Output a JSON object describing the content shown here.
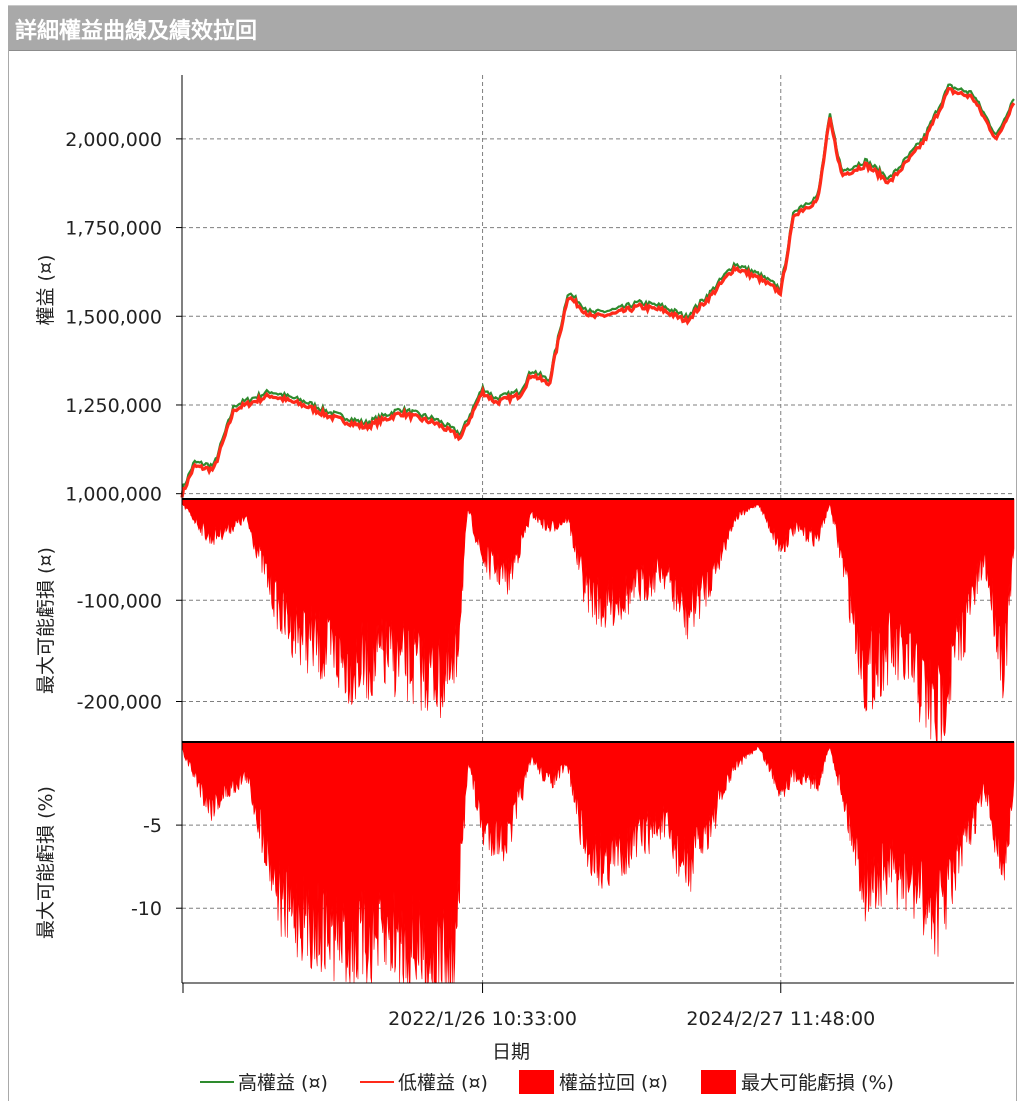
{
  "window": {
    "title": "詳細權益曲線及績效拉回"
  },
  "colors": {
    "high": "#2e8b2e",
    "low": "#ff2a1a",
    "fill": "#ff0000",
    "grid": "#7f7f7f",
    "axis": "#000000"
  },
  "chart_data": [
    {
      "type": "line",
      "ylabel": "權益 (¤)",
      "ylim": [
        985000,
        2180000
      ],
      "yticks": [
        1000000,
        1250000,
        1500000,
        1750000,
        2000000
      ],
      "ytick_labels": [
        "1,000,000",
        "1,250,000",
        "1,500,000",
        "1,750,000",
        "2,000,000"
      ],
      "series": [
        {
          "name": "高權益 (¤)",
          "color": "#2e8b2e"
        },
        {
          "name": "低權益 (¤)",
          "color": "#ff2a1a"
        }
      ],
      "x": [
        "2019-12-20",
        "2020-01-20",
        "2020-03-10",
        "2020-05-01",
        "2020-08-01",
        "2020-11-01",
        "2021-01-01",
        "2021-04-01",
        "2021-07-01",
        "2021-10-01",
        "2021-12-01",
        "2022-01-26",
        "2022-03-01",
        "2022-05-01",
        "2022-06-01",
        "2022-07-15",
        "2022-09-01",
        "2022-11-01",
        "2023-01-01",
        "2023-03-01",
        "2023-05-01",
        "2023-07-01",
        "2023-09-01",
        "2023-11-01",
        "2024-01-01",
        "2024-02-27",
        "2024-04-01",
        "2024-06-01",
        "2024-07-01",
        "2024-08-01",
        "2024-10-01",
        "2024-12-01",
        "2025-02-01",
        "2025-03-01",
        "2025-05-01",
        "2025-07-01",
        "2025-09-01",
        "2025-10-15"
      ],
      "values": [
        1000000,
        1080000,
        1070000,
        1240000,
        1280000,
        1250000,
        1220000,
        1190000,
        1230000,
        1200000,
        1160000,
        1290000,
        1260000,
        1280000,
        1340000,
        1310000,
        1560000,
        1500000,
        1510000,
        1530000,
        1520000,
        1490000,
        1560000,
        1640000,
        1610000,
        1570000,
        1790000,
        1830000,
        2060000,
        1900000,
        1930000,
        1880000,
        1960000,
        2000000,
        2140000,
        2120000,
        2000000,
        2110000
      ]
    },
    {
      "type": "area",
      "ylabel": "最大可能虧損 (¤)",
      "series_name": "權益拉回 (¤)",
      "ylim": [
        -240000,
        0
      ],
      "yticks": [
        -100000,
        -200000
      ],
      "ytick_labels": [
        "-100,000",
        "-200,000"
      ],
      "x": [
        "2019-12-20",
        "2020-03-01",
        "2020-06-01",
        "2020-09-01",
        "2020-12-01",
        "2021-03-01",
        "2021-06-01",
        "2021-09-01",
        "2021-11-15",
        "2021-12-20",
        "2022-01-26",
        "2022-04-01",
        "2022-06-01",
        "2022-07-15",
        "2022-09-01",
        "2022-10-15",
        "2022-12-01",
        "2023-03-01",
        "2023-05-01",
        "2023-07-01",
        "2023-09-01",
        "2023-11-01",
        "2024-01-01",
        "2024-02-27",
        "2024-04-01",
        "2024-06-01",
        "2024-07-01",
        "2024-08-01",
        "2024-10-01",
        "2024-12-01",
        "2025-02-01",
        "2025-04-01",
        "2025-06-01",
        "2025-08-01",
        "2025-09-20",
        "2025-10-15"
      ],
      "values": [
        -5000,
        -40000,
        -20000,
        -120000,
        -150000,
        -170000,
        -160000,
        -175000,
        -185000,
        -10000,
        -60000,
        -80000,
        -15000,
        -30000,
        -20000,
        -90000,
        -110000,
        -90000,
        -70000,
        -120000,
        -80000,
        -20000,
        -5000,
        -50000,
        -30000,
        -40000,
        -5000,
        -60000,
        -180000,
        -150000,
        -175000,
        -220000,
        -140000,
        -60000,
        -170000,
        -50000
      ]
    },
    {
      "type": "area",
      "ylabel": "最大可能虧損 (%)",
      "series_name": "最大可能虧損 (%)",
      "ylim": [
        -14.5,
        0
      ],
      "yticks": [
        -5,
        -10
      ],
      "ytick_labels": [
        "-5",
        "-10"
      ],
      "x": [
        "2019-12-20",
        "2020-03-01",
        "2020-06-01",
        "2020-09-01",
        "2020-12-01",
        "2021-03-01",
        "2021-06-01",
        "2021-09-01",
        "2021-11-15",
        "2021-12-20",
        "2022-01-26",
        "2022-04-01",
        "2022-06-01",
        "2022-07-15",
        "2022-09-01",
        "2022-10-15",
        "2022-12-01",
        "2023-03-01",
        "2023-05-01",
        "2023-07-01",
        "2023-09-01",
        "2023-11-01",
        "2024-01-01",
        "2024-02-27",
        "2024-04-01",
        "2024-06-01",
        "2024-07-01",
        "2024-08-01",
        "2024-10-01",
        "2024-12-01",
        "2025-02-01",
        "2025-04-01",
        "2025-06-01",
        "2025-08-01",
        "2025-09-20",
        "2025-10-15"
      ],
      "values": [
        -0.5,
        -4,
        -2,
        -10,
        -11.5,
        -12.5,
        -12,
        -13,
        -14,
        -1,
        -5.5,
        -6,
        -1,
        -2.5,
        -1.5,
        -6.5,
        -7.5,
        -6,
        -5,
        -8,
        -5,
        -1.5,
        -0.3,
        -3,
        -2,
        -2.5,
        -0.3,
        -3,
        -9,
        -8,
        -9,
        -10.8,
        -7,
        -3,
        -8,
        -3
      ]
    }
  ],
  "xaxis": {
    "label": "日期",
    "ticks": [
      {
        "x": "2022-01-26",
        "label": "2022/1/26 10:33:00"
      },
      {
        "x": "2024-02-27",
        "label": "2024/2/27 11:48:00"
      }
    ],
    "range": [
      "2019-12-20",
      "2025-10-15"
    ]
  },
  "legend": [
    {
      "label": "高權益 (¤)",
      "kind": "line",
      "color": "#2e8b2e"
    },
    {
      "label": "低權益 (¤)",
      "kind": "line",
      "color": "#ff2a1a"
    },
    {
      "label": "權益拉回 (¤)",
      "kind": "box",
      "color": "#ff0000"
    },
    {
      "label": "最大可能虧損 (%)",
      "kind": "box",
      "color": "#ff0000"
    }
  ]
}
